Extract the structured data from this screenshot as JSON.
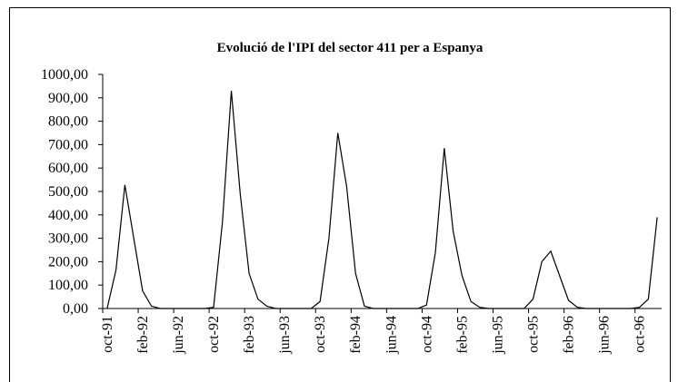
{
  "chart_data": {
    "type": "line",
    "title": "Evolució de l'IPI del sector 411 per a Espanya",
    "categories": [
      "oct-91",
      null,
      null,
      null,
      "feb-92",
      null,
      null,
      null,
      "jun-92",
      null,
      null,
      null,
      "oct-92",
      null,
      null,
      null,
      "feb-93",
      null,
      null,
      null,
      "jun-93",
      null,
      null,
      null,
      "oct-93",
      null,
      null,
      null,
      "feb-94",
      null,
      null,
      null,
      "jun-94",
      null,
      null,
      null,
      "oct-94",
      null,
      null,
      null,
      "feb-95",
      null,
      null,
      null,
      "jun-95",
      null,
      null,
      null,
      "oct-95",
      null,
      null,
      null,
      "feb-96",
      null,
      null,
      null,
      "jun-96",
      null,
      null,
      null,
      "oct-96",
      null,
      null
    ],
    "values": [
      0,
      165,
      528,
      300,
      75,
      10,
      0,
      0,
      0,
      0,
      0,
      0,
      5,
      370,
      930,
      490,
      150,
      40,
      10,
      0,
      0,
      0,
      0,
      0,
      30,
      300,
      750,
      520,
      150,
      10,
      0,
      0,
      0,
      0,
      0,
      0,
      15,
      240,
      685,
      330,
      140,
      30,
      5,
      0,
      0,
      0,
      0,
      0,
      40,
      200,
      245,
      140,
      35,
      5,
      0,
      0,
      0,
      0,
      0,
      0,
      5,
      40,
      390
    ],
    "color": "#000000",
    "ylim": [
      0,
      1000
    ],
    "yticks": [
      {
        "value": 0,
        "label": "0,00"
      },
      {
        "value": 100,
        "label": "100,00"
      },
      {
        "value": 200,
        "label": "200,00"
      },
      {
        "value": 300,
        "label": "300,00"
      },
      {
        "value": 400,
        "label": "400,00"
      },
      {
        "value": 500,
        "label": "500,00"
      },
      {
        "value": 600,
        "label": "600,00"
      },
      {
        "value": 700,
        "label": "700,00"
      },
      {
        "value": 800,
        "label": "800,00"
      },
      {
        "value": 900,
        "label": "900,00"
      },
      {
        "value": 1000,
        "label": "1000,00"
      }
    ]
  }
}
